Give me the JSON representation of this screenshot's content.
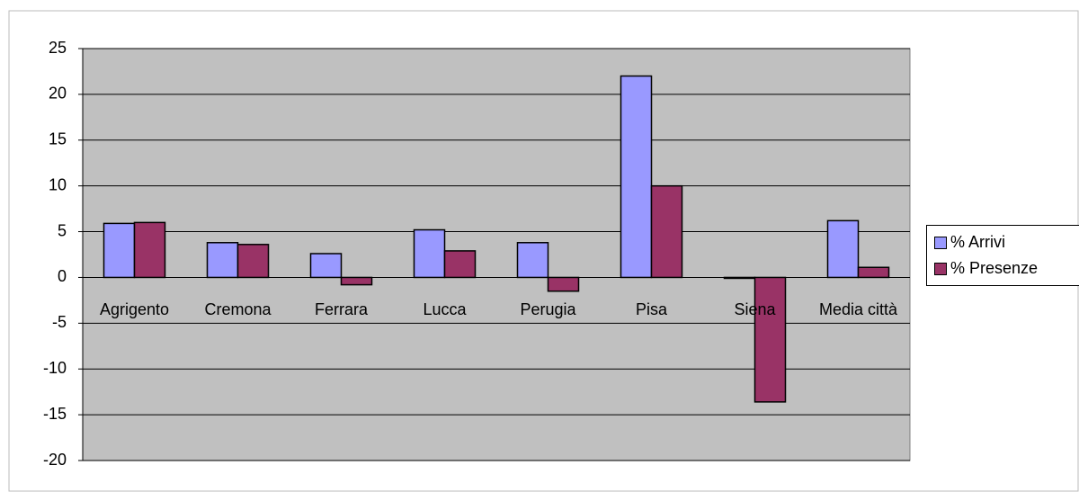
{
  "chart_data": {
    "type": "bar",
    "categories": [
      "Agrigento",
      "Cremona",
      "Ferrara",
      "Lucca",
      "Perugia",
      "Pisa",
      "Siena",
      "Media città"
    ],
    "series": [
      {
        "name": "% Arrivi",
        "color": "#9999ff",
        "values": [
          5.9,
          3.8,
          2.6,
          5.2,
          3.8,
          22.0,
          -0.1,
          6.2
        ]
      },
      {
        "name": "% Presenze",
        "color": "#993366",
        "values": [
          6.0,
          3.6,
          -0.8,
          2.9,
          -1.5,
          10.0,
          -13.6,
          1.1
        ]
      }
    ],
    "ylim": [
      -20,
      25
    ],
    "yticks": [
      -20,
      -15,
      -10,
      -5,
      0,
      5,
      10,
      15,
      20,
      25
    ],
    "grid": true,
    "legend": "right",
    "plot_background": "#c0c0c0"
  }
}
